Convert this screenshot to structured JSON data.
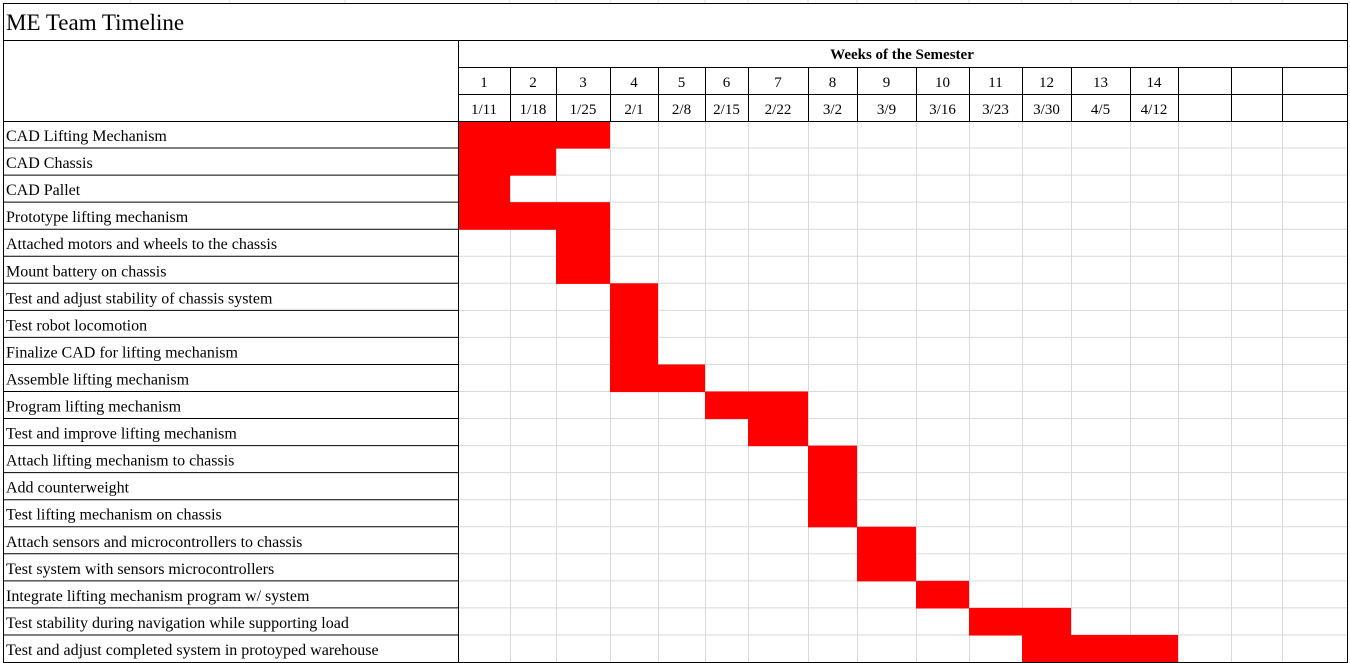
{
  "title": "ME Team Timeline",
  "header": {
    "weeks_label": "Weeks of the Semester"
  },
  "bar_color": "#ff0000",
  "chart_data": {
    "type": "gantt",
    "title": "ME Team Timeline",
    "xlabel": "Weeks of the Semester",
    "weeks": [
      "1",
      "2",
      "3",
      "4",
      "5",
      "6",
      "7",
      "8",
      "9",
      "10",
      "11",
      "12",
      "13",
      "14"
    ],
    "dates": [
      "1/11",
      "1/18",
      "1/25",
      "2/1",
      "2/8",
      "2/15",
      "2/22",
      "3/2",
      "3/9",
      "3/16",
      "3/23",
      "3/30",
      "4/5",
      "4/12"
    ],
    "tasks": [
      {
        "name": "CAD Lifting Mechanism",
        "start": 1,
        "end": 3
      },
      {
        "name": "CAD Chassis",
        "start": 1,
        "end": 2
      },
      {
        "name": "CAD Pallet",
        "start": 1,
        "end": 1
      },
      {
        "name": "Prototype lifting mechanism",
        "start": 1,
        "end": 3
      },
      {
        "name": "Attached motors and wheels to the chassis",
        "start": 3,
        "end": 3
      },
      {
        "name": "Mount battery on chassis",
        "start": 3,
        "end": 3
      },
      {
        "name": "Test and adjust stability of chassis system",
        "start": 4,
        "end": 4
      },
      {
        "name": "Test robot locomotion",
        "start": 4,
        "end": 4
      },
      {
        "name": "Finalize CAD for lifting mechanism",
        "start": 4,
        "end": 4
      },
      {
        "name": "Assemble lifting mechanism",
        "start": 4,
        "end": 5
      },
      {
        "name": "Program lifting mechanism",
        "start": 6,
        "end": 7
      },
      {
        "name": "Test and improve lifting mechanism",
        "start": 7,
        "end": 7
      },
      {
        "name": "Attach lifting mechanism to chassis",
        "start": 8,
        "end": 8
      },
      {
        "name": "Add counterweight",
        "start": 8,
        "end": 8
      },
      {
        "name": "Test lifting mechanism on chassis",
        "start": 8,
        "end": 8
      },
      {
        "name": "Attach sensors and microcontrollers to chassis",
        "start": 9,
        "end": 9
      },
      {
        "name": "Test system with sensors microcontrollers",
        "start": 9,
        "end": 9
      },
      {
        "name": "Integrate lifting mechanism program w/ system",
        "start": 10,
        "end": 10
      },
      {
        "name": "Test stability during navigation while supporting load",
        "start": 11,
        "end": 12
      },
      {
        "name": "Test and adjust completed system in protoyped warehouse",
        "start": 12,
        "end": 14
      }
    ]
  }
}
